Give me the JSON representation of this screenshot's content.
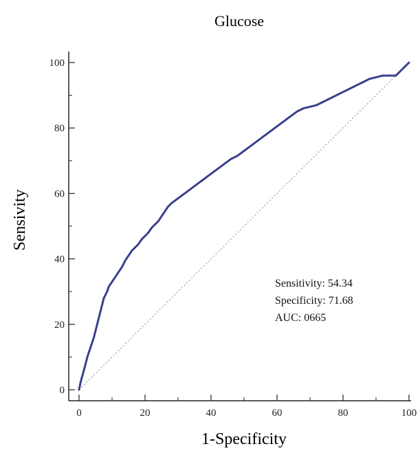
{
  "chart_data": {
    "type": "line",
    "title": "Glucose",
    "xlabel": "1-Specificity",
    "ylabel": "Sensivity",
    "xlim": [
      0,
      100
    ],
    "ylim": [
      0,
      100
    ],
    "x_ticks": [
      "0",
      "20",
      "40",
      "60",
      "80",
      "100"
    ],
    "y_ticks": [
      "0",
      "20",
      "40",
      "60",
      "80",
      "100"
    ],
    "grid": false,
    "colors": {
      "roc_curve": "#3a3f8f",
      "reference_line": "#9a9a9a",
      "axes": "#222222"
    },
    "series": [
      {
        "role": "roc-curve",
        "x": [
          0,
          0.4,
          0.8,
          1.2,
          1.6,
          2.0,
          2.5,
          3.0,
          3.5,
          4.0,
          4.5,
          5.0,
          5.5,
          6.0,
          6.5,
          7.0,
          7.5,
          8.0,
          8.5,
          9.0,
          10,
          11,
          12,
          13,
          14,
          15,
          16,
          17,
          18,
          19,
          20,
          21,
          22,
          23,
          24,
          25,
          26,
          27,
          28,
          30,
          32,
          34,
          36,
          38,
          40,
          42,
          44,
          46,
          48,
          50,
          52,
          54,
          56,
          58,
          60,
          62,
          64,
          66,
          68,
          70,
          72,
          74,
          76,
          78,
          80,
          82,
          84,
          86,
          88,
          90,
          92,
          94,
          96,
          97,
          98,
          99,
          100
        ],
        "y": [
          0,
          2,
          3.5,
          5,
          6.5,
          8,
          10,
          11.5,
          13,
          14.5,
          16,
          18,
          20,
          22,
          24,
          26,
          28,
          29,
          30,
          31.5,
          33,
          34.5,
          36,
          37.5,
          39.5,
          41,
          42.5,
          43.5,
          44.5,
          46,
          47,
          48,
          49.5,
          50.5,
          51.5,
          53,
          54.5,
          56,
          57,
          58.5,
          60,
          61.5,
          63,
          64.5,
          66,
          67.5,
          69,
          70.5,
          71.5,
          73,
          74.5,
          76,
          77.5,
          79,
          80.5,
          82,
          83.5,
          85,
          86,
          86.5,
          87,
          88,
          89,
          90,
          91,
          92,
          93,
          94,
          95,
          95.5,
          96,
          96,
          96,
          97,
          98,
          99,
          100
        ]
      },
      {
        "role": "reference-diagonal",
        "x": [
          0,
          100
        ],
        "y": [
          0,
          100
        ]
      }
    ],
    "annotations": [
      "Sensitivity: 54.34",
      "Specificity: 71.68",
      "AUC: 0665"
    ]
  }
}
